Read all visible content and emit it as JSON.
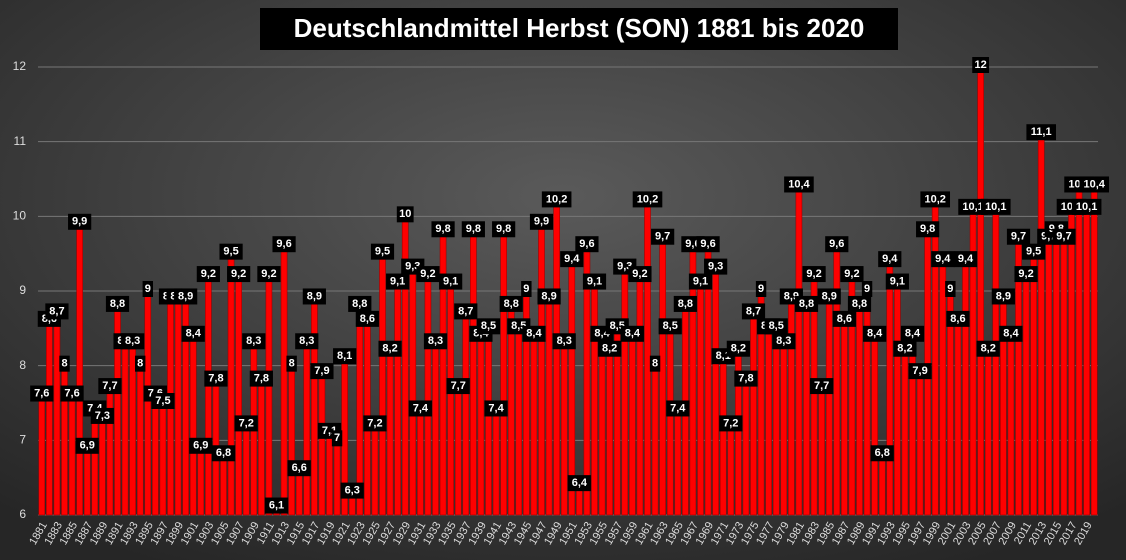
{
  "chart_data": {
    "type": "bar",
    "title": "Deutschlandmittel Herbst (SON) 1881 bis 2020",
    "categories": [
      "1881",
      null,
      "1883",
      null,
      "1885",
      null,
      "1887",
      null,
      "1889",
      null,
      "1891",
      null,
      "1893",
      null,
      "1895",
      null,
      "1897",
      null,
      "1899",
      null,
      "1901",
      null,
      "1903",
      null,
      "1905",
      null,
      "1907",
      null,
      "1909",
      null,
      "1911",
      null,
      "1913",
      null,
      "1915",
      null,
      "1917",
      null,
      "1919",
      null,
      "1921",
      null,
      "1923",
      null,
      "1925",
      null,
      "1927",
      null,
      "1929",
      null,
      "1931",
      null,
      "1933",
      null,
      "1935",
      null,
      "1937",
      null,
      "1939",
      null,
      "1941",
      null,
      "1943",
      null,
      "1945",
      null,
      "1947",
      null,
      "1949",
      null,
      "1951",
      null,
      "1953",
      null,
      "1955",
      null,
      "1957",
      null,
      "1959",
      null,
      "1961",
      null,
      "1963",
      null,
      "1965",
      null,
      "1967",
      null,
      "1969",
      null,
      "1971",
      null,
      "1973",
      null,
      "1975",
      null,
      "1977",
      null,
      "1979",
      null,
      "1981",
      null,
      "1983",
      null,
      "1985",
      null,
      "1987",
      null,
      "1989",
      null,
      "1991",
      null,
      "1993",
      null,
      "1995",
      null,
      "1997",
      null,
      "1999",
      null,
      "2001",
      null,
      "2003",
      null,
      "2005",
      null,
      "2007",
      null,
      "2009",
      null,
      "2011",
      null,
      "2013",
      null,
      "2015",
      null,
      "2017",
      null,
      "2019",
      null
    ],
    "values": [
      7.6,
      8.6,
      8.7,
      8,
      7.6,
      9.9,
      6.9,
      7.4,
      7.3,
      7.7,
      8.8,
      8.3,
      8.3,
      8,
      9,
      7.6,
      7.5,
      8.9,
      8.9,
      8.9,
      8.4,
      6.9,
      9.2,
      7.8,
      6.8,
      9.5,
      9.2,
      7.2,
      8.3,
      7.8,
      9.2,
      6.1,
      9.6,
      8,
      6.6,
      8.3,
      8.9,
      7.9,
      7.1,
      7,
      8.1,
      6.3,
      8.8,
      8.6,
      7.2,
      9.5,
      8.2,
      9.1,
      10,
      9.3,
      7.4,
      9.2,
      8.3,
      9.8,
      9.1,
      7.7,
      8.7,
      9.8,
      8.4,
      8.5,
      7.4,
      9.8,
      8.8,
      8.5,
      9,
      8.4,
      9.9,
      8.9,
      10.2,
      8.3,
      9.4,
      6.4,
      9.6,
      9.1,
      8.4,
      8.2,
      8.5,
      9.3,
      8.4,
      9.2,
      10.2,
      8,
      9.7,
      8.5,
      7.4,
      8.8,
      9.6,
      9.1,
      9.6,
      9.3,
      8.1,
      7.2,
      8.2,
      7.8,
      8.7,
      9,
      8.5,
      8.5,
      8.3,
      8.9,
      10.4,
      8.8,
      9.2,
      7.7,
      8.9,
      9.6,
      8.6,
      9.2,
      8.8,
      9,
      8.4,
      6.8,
      9.4,
      9.1,
      8.2,
      8.4,
      7.9,
      9.8,
      10.2,
      9.4,
      9,
      8.6,
      9.4,
      10.1,
      12,
      8.2,
      10.1,
      8.9,
      8.4,
      9.7,
      9.2,
      9.5,
      11.1,
      9.7,
      9.8,
      9.7,
      10.1,
      10.4,
      10.1,
      10.4
    ],
    "value_labels": [
      "7,6",
      "8,6",
      "8,7",
      "8",
      "7,6",
      "9,9",
      "6,9",
      "7,4",
      "7,3",
      "7,7",
      "8,8",
      "8,3",
      "8,3",
      "8",
      "9",
      "7,6",
      "7,5",
      "8,9",
      "8,9",
      "8,9",
      "8,4",
      "6,9",
      "9,2",
      "7,8",
      "6,8",
      "9,5",
      "9,2",
      "7,2",
      "8,3",
      "7,8",
      "9,2",
      "6,1",
      "9,6",
      "8",
      "6,6",
      "8,3",
      "8,9",
      "7,9",
      "7,1",
      "7",
      "8,1",
      "6,3",
      "8,8",
      "8,6",
      "7,2",
      "9,5",
      "8,2",
      "9,1",
      "10",
      "9,3",
      "7,4",
      "9,2",
      "8,3",
      "9,8",
      "9,1",
      "7,7",
      "8,7",
      "9,8",
      "8,4",
      "8,5",
      "7,4",
      "9,8",
      "8,8",
      "8,5",
      "9",
      "8,4",
      "9,9",
      "8,9",
      "10,2",
      "8,3",
      "9,4",
      "6,4",
      "9,6",
      "9,1",
      "8,4",
      "8,2",
      "8,5",
      "9,3",
      "8,4",
      "9,2",
      "10,2",
      "8",
      "9,7",
      "8,5",
      "7,4",
      "8,8",
      "9,6",
      "9,1",
      "9,6",
      "9,3",
      "8,1",
      "7,2",
      "8,2",
      "7,8",
      "8,7",
      "9",
      "8,5",
      "8,5",
      "8,3",
      "8,9",
      "10,4",
      "8,8",
      "9,2",
      "7,7",
      "8,9",
      "9,6",
      "8,6",
      "9,2",
      "8,8",
      "9",
      "8,4",
      "6,8",
      "9,4",
      "9,1",
      "8,2",
      "8,4",
      "7,9",
      "9,8",
      "10,2",
      "9,4",
      "9",
      "8,6",
      "9,4",
      "10,1",
      "12",
      "8,2",
      "10,1",
      "8,9",
      "8,4",
      "9,7",
      "9,2",
      "9,5",
      "11,1",
      "9,7",
      "9,8",
      "9,7",
      "10,1",
      "10,4",
      "10,1",
      "10,4"
    ],
    "color": "#ff0000",
    "ylim": [
      6,
      12
    ],
    "yticks": [
      6,
      7,
      8,
      9,
      10,
      11,
      12
    ],
    "grid": true
  }
}
